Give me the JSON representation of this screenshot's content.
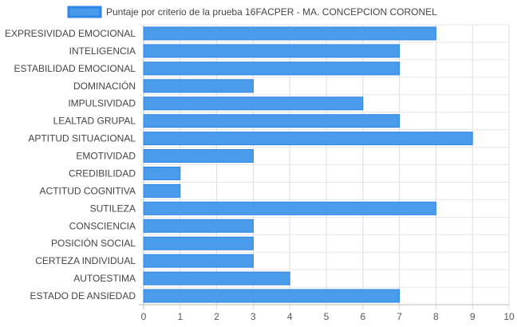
{
  "chart_data": {
    "type": "bar",
    "orientation": "horizontal",
    "legend_position": "top",
    "grid": true,
    "series": [
      {
        "name": "Puntaje por criterio de la prueba 16FACPER - MA. CONCEPCION CORONEL",
        "color": "#4A9BEA",
        "border_color": "#2E86E6"
      }
    ],
    "categories": [
      "EXPRESIVIDAD EMOCIONAL",
      "INTELIGENCIA",
      "ESTABILIDAD EMOCIONAL",
      "DOMINACIÓN",
      "IMPULSIVIDAD",
      "LEALTAD GRUPAL",
      "APTITUD SITUACIONAL",
      "EMOTIVIDAD",
      "CREDIBILIDAD",
      "ACTITUD COGNITIVA",
      "SUTILEZA",
      "CONSCIENCIA",
      "POSICIÓN SOCIAL",
      "CERTEZA INDIVIDUAL",
      "AUTOESTIMA",
      "ESTADO DE ANSIEDAD"
    ],
    "values": [
      8,
      7,
      7,
      3,
      6,
      7,
      9,
      3,
      1,
      1,
      8,
      3,
      3,
      3,
      4,
      7
    ],
    "xlim": [
      0,
      10
    ],
    "xticks": [
      "0",
      "1",
      "2",
      "3",
      "4",
      "5",
      "6",
      "7",
      "8",
      "9",
      "10"
    ]
  }
}
